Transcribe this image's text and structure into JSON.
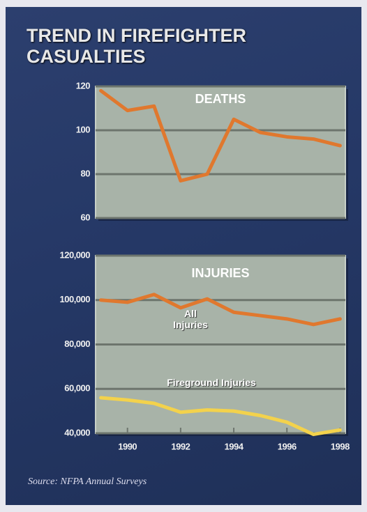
{
  "title": "TREND IN FIREFIGHTER CASUALTIES",
  "source": "Source: NFPA Annual Surveys",
  "chart_data": [
    {
      "type": "line",
      "title": "DEATHS",
      "x": [
        1989,
        1990,
        1991,
        1992,
        1993,
        1994,
        1995,
        1996,
        1997,
        1998
      ],
      "values": [
        118,
        109,
        111,
        77,
        80,
        105,
        99,
        97,
        96,
        93
      ],
      "color": "#e0782e",
      "xlim": [
        1988.8,
        1998.2
      ],
      "ylim": [
        60,
        120
      ],
      "yticks": [
        60,
        80,
        100,
        120
      ],
      "grid": true
    },
    {
      "type": "line",
      "title": "INJURIES",
      "x": [
        1989,
        1990,
        1991,
        1992,
        1993,
        1994,
        1995,
        1996,
        1997,
        1998
      ],
      "series": [
        {
          "name": "All Injuries",
          "color": "#e0782e",
          "values": [
            100000,
            99000,
            102500,
            96500,
            100500,
            94500,
            93000,
            91500,
            89000,
            91500
          ]
        },
        {
          "name": "Fireground Injuries",
          "color": "#f3d24c",
          "values": [
            56000,
            55000,
            53500,
            49500,
            50500,
            50000,
            48000,
            45000,
            39500,
            41500
          ]
        }
      ],
      "xlim": [
        1988.8,
        1998.2
      ],
      "xticks": [
        1990,
        1992,
        1994,
        1996,
        1998
      ],
      "ylim": [
        40000,
        120000
      ],
      "yticks": [
        {
          "value": 40000,
          "label": "40,000"
        },
        {
          "value": 60000,
          "label": "60,000"
        },
        {
          "value": 80000,
          "label": "80,000"
        },
        {
          "value": 100000,
          "label": "100,000"
        },
        {
          "value": 120000,
          "label": "120,000"
        }
      ],
      "grid": true
    }
  ]
}
